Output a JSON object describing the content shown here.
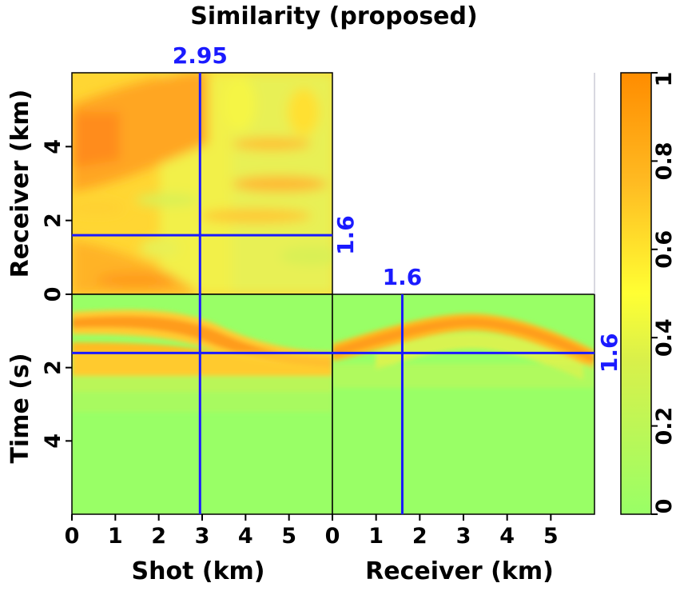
{
  "chart_data": {
    "type": "heatmap",
    "title": "Similarity (proposed)",
    "colormap": {
      "name": "green-yellow-orange",
      "stops": [
        {
          "value": 0.0,
          "color": "#99ff66"
        },
        {
          "value": 0.35,
          "color": "#d9f04a"
        },
        {
          "value": 0.5,
          "color": "#ffff33"
        },
        {
          "value": 0.75,
          "color": "#ffbb22"
        },
        {
          "value": 1.0,
          "color": "#ff8c00"
        }
      ]
    },
    "colorbar": {
      "range": [
        0,
        1
      ],
      "ticks": [
        {
          "value": 0,
          "label": "0"
        },
        {
          "value": 0.2,
          "label": "0.2"
        },
        {
          "value": 0.4,
          "label": "0.4"
        },
        {
          "value": 0.6,
          "label": "0.6"
        },
        {
          "value": 0.8,
          "label": "0.8"
        },
        {
          "value": 1,
          "label": "1"
        }
      ]
    },
    "panels": {
      "shot_receiver": {
        "description_axes": [
          "shot",
          "receiver"
        ],
        "xlim": [
          0,
          6
        ],
        "ylim": [
          0,
          6
        ],
        "ylabel": "Receiver (km)",
        "yticks": [
          {
            "value": 0,
            "label": "0"
          },
          {
            "value": 2,
            "label": "2"
          },
          {
            "value": 4,
            "label": "4"
          }
        ]
      },
      "shot_time": {
        "xlim": [
          0,
          6
        ],
        "ylim": [
          0,
          6
        ],
        "xlabel": "Shot (km)",
        "ylabel": "Time (s)",
        "xticks": [
          {
            "value": 0,
            "label": "0"
          },
          {
            "value": 1,
            "label": "1"
          },
          {
            "value": 2,
            "label": "2"
          },
          {
            "value": 3,
            "label": "3"
          },
          {
            "value": 4,
            "label": "4"
          },
          {
            "value": 5,
            "label": "5"
          }
        ],
        "yticks": [
          {
            "value": 2,
            "label": "2"
          },
          {
            "value": 4,
            "label": "4"
          }
        ]
      },
      "receiver_time": {
        "xlim": [
          0,
          6
        ],
        "ylim": [
          0,
          6
        ],
        "xlabel": "Receiver (km)",
        "xticks": [
          {
            "value": 0,
            "label": "0"
          },
          {
            "value": 1,
            "label": "1"
          },
          {
            "value": 2,
            "label": "2"
          },
          {
            "value": 3,
            "label": "3"
          },
          {
            "value": 4,
            "label": "4"
          },
          {
            "value": 5,
            "label": "5"
          }
        ]
      }
    },
    "slice_markers": {
      "color": "#1a1aff",
      "shot": {
        "value": 2.95,
        "label": "2.95"
      },
      "receiver": {
        "value": 1.6,
        "label": "1.6"
      },
      "time": {
        "value": 1.6,
        "label": "1.6"
      }
    }
  }
}
